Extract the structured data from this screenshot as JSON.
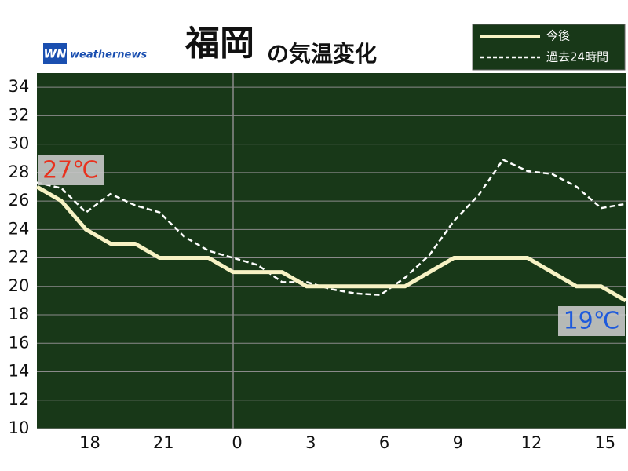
{
  "logo": {
    "mark": "WN",
    "name": "weathernews"
  },
  "chart_data": {
    "type": "line",
    "title": "福岡",
    "title_suffix": "の気温変化",
    "x": [
      16,
      17,
      18,
      19,
      20,
      21,
      22,
      23,
      24,
      25,
      26,
      27,
      28,
      29,
      30,
      31,
      32,
      33,
      34,
      35,
      36,
      37,
      38,
      39,
      40
    ],
    "series": [
      {
        "name": "今後",
        "color": "#f7f2c4",
        "dashed": false,
        "values": [
          27,
          26,
          24,
          23,
          23,
          22,
          22,
          22,
          21,
          21,
          21,
          20,
          20,
          20,
          20,
          20,
          21,
          22,
          22,
          22,
          22,
          21,
          20,
          20,
          19
        ]
      },
      {
        "name": "過去24時間",
        "color": "#ffffff",
        "dashed": true,
        "values": [
          27.3,
          26.9,
          25.2,
          26.5,
          25.7,
          25.2,
          23.5,
          22.5,
          22.0,
          21.5,
          20.3,
          20.3,
          19.8,
          19.5,
          19.4,
          20.6,
          22.2,
          24.6,
          26.4,
          28.9,
          28.1,
          27.9,
          27.0,
          25.5,
          25.8
        ]
      }
    ],
    "xlim": [
      16,
      40
    ],
    "xticks": [
      18,
      21,
      {
        "value": 24,
        "label": "0"
      },
      {
        "value": 27,
        "label": "3"
      },
      {
        "value": 30,
        "label": "6"
      },
      {
        "value": 33,
        "label": "9"
      },
      {
        "value": 36,
        "label": "12"
      },
      {
        "value": 39,
        "label": "15"
      }
    ],
    "day_line": 24,
    "ylim": [
      10,
      35
    ],
    "yticks": [
      10,
      12,
      14,
      16,
      18,
      20,
      22,
      24,
      26,
      28,
      30,
      32,
      34
    ],
    "grid": true,
    "background": "#183818",
    "annotations": [
      {
        "text": "27℃",
        "color": "#e8321e"
      },
      {
        "text": "19℃",
        "color": "#1e5adc"
      }
    ]
  }
}
